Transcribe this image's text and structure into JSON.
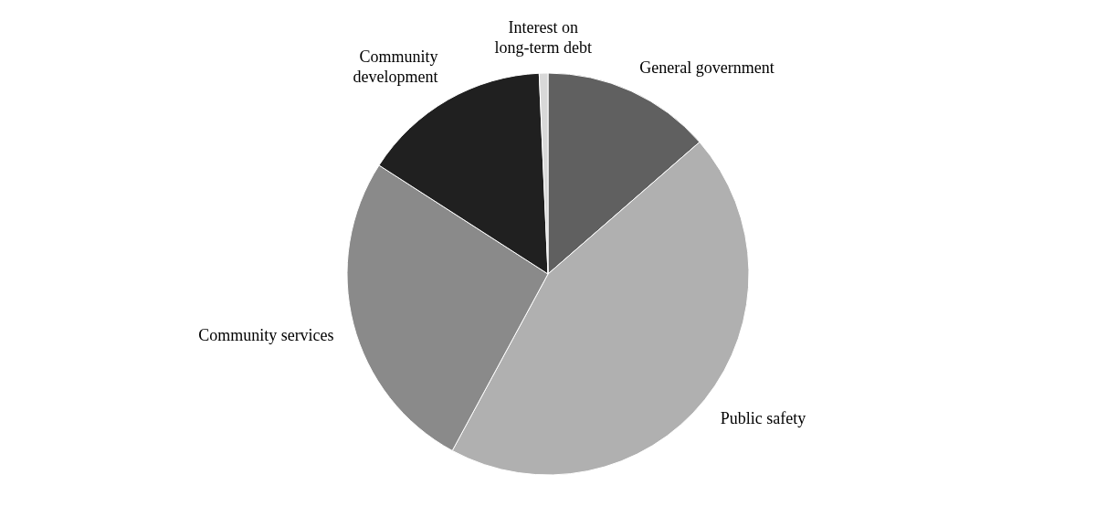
{
  "chart_data": {
    "type": "pie",
    "categories": [
      "General government",
      "Public safety",
      "Community services",
      "Community development",
      "Interest on long-term debt"
    ],
    "values": [
      13.6,
      44.3,
      26.2,
      15.2,
      0.7
    ],
    "colors": [
      "#606060",
      "#b0b0b0",
      "#8a8a8a",
      "#202020",
      "#d8d8d8"
    ]
  }
}
